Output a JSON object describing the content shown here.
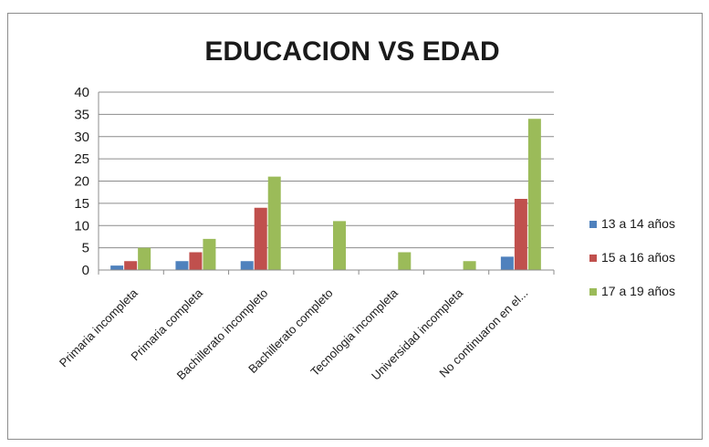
{
  "chart_data": {
    "type": "bar",
    "title": "EDUCACION VS EDAD",
    "xlabel": "",
    "ylabel": "",
    "ylim": [
      0,
      40
    ],
    "yticks": [
      0,
      5,
      10,
      15,
      20,
      25,
      30,
      35,
      40
    ],
    "grid": true,
    "legend_position": "right",
    "categories": [
      "Primaria incompleta",
      "Primaria completa",
      "Bachillerato incompleto",
      "Bachillerato completo",
      "Tecnologia incompleta",
      "Universidad incompleta",
      "No continuaron en el..."
    ],
    "series": [
      {
        "name": "13 a 14 años",
        "color": "#4f81bd",
        "values": [
          1,
          2,
          2,
          0,
          0,
          0,
          3
        ]
      },
      {
        "name": "15 a 16 años",
        "color": "#c0504d",
        "values": [
          2,
          4,
          14,
          0,
          0,
          0,
          16
        ]
      },
      {
        "name": "17 a 19 años",
        "color": "#9bbb59",
        "values": [
          5,
          7,
          21,
          11,
          4,
          2,
          34
        ]
      }
    ]
  }
}
